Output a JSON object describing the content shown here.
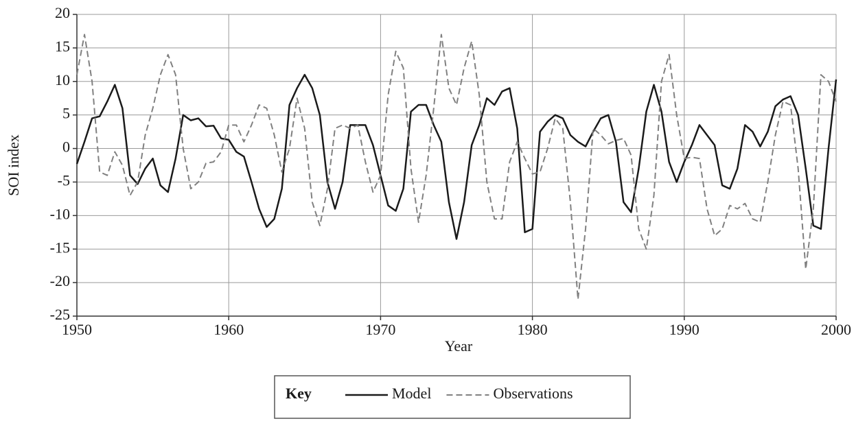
{
  "chart_data": {
    "type": "line",
    "x_label": "Year",
    "y_label": "SOI index",
    "legend_title": "Key",
    "xlim": [
      1950,
      2000
    ],
    "xticks": [
      1950,
      1960,
      1970,
      1980,
      1990,
      2000
    ],
    "ylim": [
      -25,
      20
    ],
    "yticks": [
      -25,
      -20,
      -15,
      -10,
      -5,
      0,
      5,
      10,
      15,
      20
    ],
    "grid": true,
    "x": [
      1950,
      1950.5,
      1951,
      1951.5,
      1952,
      1952.5,
      1953,
      1953.5,
      1954,
      1954.5,
      1955,
      1955.5,
      1956,
      1956.5,
      1957,
      1957.5,
      1958,
      1958.5,
      1959,
      1959.5,
      1960,
      1960.5,
      1961,
      1961.5,
      1962,
      1962.5,
      1963,
      1963.5,
      1964,
      1964.5,
      1965,
      1965.5,
      1966,
      1966.5,
      1967,
      1967.5,
      1968,
      1968.5,
      1969,
      1969.5,
      1970,
      1970.5,
      1971,
      1971.5,
      1972,
      1972.5,
      1973,
      1973.5,
      1974,
      1974.5,
      1975,
      1975.5,
      1976,
      1976.5,
      1977,
      1977.5,
      1978,
      1978.5,
      1979,
      1979.5,
      1980,
      1980.5,
      1981,
      1981.5,
      1982,
      1982.5,
      1983,
      1983.5,
      1984,
      1984.5,
      1985,
      1985.5,
      1986,
      1986.5,
      1987,
      1987.5,
      1988,
      1988.5,
      1989,
      1989.5,
      1990,
      1990.5,
      1991,
      1991.5,
      1992,
      1992.5,
      1993,
      1993.5,
      1994,
      1994.5,
      1995,
      1995.5,
      1996,
      1996.5,
      1997,
      1997.5,
      1998,
      1998.5,
      1999,
      1999.5,
      2000
    ],
    "series": [
      {
        "name": "Model",
        "color": "#1a1a1a",
        "style": "solid",
        "values": [
          -2.3,
          1,
          4.5,
          4.8,
          7,
          9.5,
          6,
          -4,
          -5.3,
          -3,
          -1.5,
          -5.5,
          -6.5,
          -1.5,
          5,
          4.2,
          4.5,
          3.3,
          3.4,
          1.5,
          1.3,
          -0.5,
          -1.2,
          -5,
          -9,
          -11.7,
          -10.5,
          -6,
          6.5,
          9,
          11,
          9,
          5,
          -5,
          -9,
          -5,
          3.5,
          3.5,
          3.5,
          0.5,
          -4,
          -8.5,
          -9.3,
          -6,
          5.5,
          6.5,
          6.5,
          3.5,
          1,
          -8,
          -13.5,
          -8,
          0.5,
          3.5,
          7.5,
          6.5,
          8.5,
          9,
          3,
          -12.5,
          -12,
          2.5,
          4,
          5,
          4.5,
          2,
          1,
          0.3,
          2.5,
          4.5,
          5,
          1,
          -8,
          -9.5,
          -3,
          5.5,
          9.5,
          5.5,
          -2,
          -5,
          -2,
          0.5,
          3.5,
          2,
          0.5,
          -5.5,
          -6,
          -3,
          3.5,
          2.5,
          0.3,
          2.5,
          6.3,
          7.3,
          7.8,
          5,
          -3,
          -11.5,
          -12,
          0,
          10.3
        ]
      },
      {
        "name": "Observations",
        "color": "#808080",
        "style": "dashed",
        "values": [
          11,
          17,
          10,
          -3.5,
          -4,
          -0.5,
          -2.5,
          -7,
          -5,
          2,
          6,
          11,
          14,
          11,
          0,
          -6,
          -5,
          -2.2,
          -2,
          -0.5,
          3.5,
          3.5,
          1,
          3.5,
          6.5,
          6,
          2,
          -3.5,
          0,
          7.5,
          3,
          -8,
          -11.5,
          -6,
          3,
          3.5,
          3,
          3.5,
          -2,
          -6.5,
          -4,
          8,
          14.5,
          12,
          -3,
          -11,
          -4,
          6,
          17,
          9,
          6.5,
          12,
          16,
          8,
          -5,
          -10.5,
          -10.5,
          -2,
          1,
          -1.5,
          -3.8,
          -3.5,
          0,
          4.5,
          3,
          -8,
          -22.5,
          -12,
          3,
          2,
          0.7,
          1.2,
          1.5,
          -1,
          -12,
          -15,
          -7,
          10,
          14,
          5,
          -1.5,
          -1.3,
          -1.5,
          -9,
          -13,
          -12,
          -8.5,
          -9,
          -8.2,
          -10.5,
          -11,
          -5,
          2,
          7,
          6.5,
          -3,
          -18,
          -9,
          11,
          10,
          7
        ]
      }
    ]
  }
}
